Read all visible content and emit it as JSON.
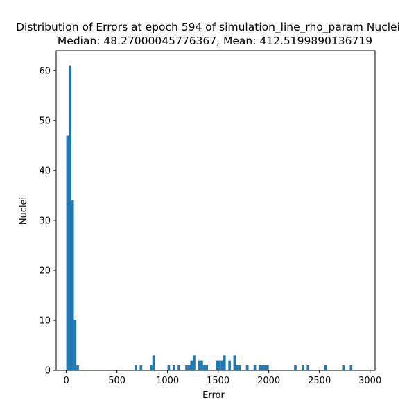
{
  "chart_data": {
    "type": "bar",
    "title": "Distribution of Errors at epoch 594 of simulation_line_rho_param Nuclei",
    "subtitle": "Median: 48.27000045776367, Mean: 412.5199890136719",
    "xlabel": "Error",
    "ylabel": "Nuclei",
    "xlim": [
      -100,
      3050
    ],
    "ylim": [
      0,
      64
    ],
    "x_ticks": [
      0,
      500,
      1000,
      1500,
      2000,
      2500,
      3000
    ],
    "y_ticks": [
      0,
      10,
      20,
      30,
      40,
      50,
      60
    ],
    "bin_width": 25,
    "bar_color": "#1f77b4",
    "grid": false,
    "bins": [
      {
        "x": 0,
        "count": 47
      },
      {
        "x": 25,
        "count": 61
      },
      {
        "x": 50,
        "count": 34
      },
      {
        "x": 75,
        "count": 10
      },
      {
        "x": 100,
        "count": 1
      },
      {
        "x": 675,
        "count": 1
      },
      {
        "x": 725,
        "count": 1
      },
      {
        "x": 825,
        "count": 1
      },
      {
        "x": 850,
        "count": 3
      },
      {
        "x": 1000,
        "count": 1
      },
      {
        "x": 1050,
        "count": 1
      },
      {
        "x": 1100,
        "count": 1
      },
      {
        "x": 1175,
        "count": 1
      },
      {
        "x": 1200,
        "count": 1
      },
      {
        "x": 1225,
        "count": 2
      },
      {
        "x": 1250,
        "count": 3
      },
      {
        "x": 1300,
        "count": 2
      },
      {
        "x": 1325,
        "count": 2
      },
      {
        "x": 1350,
        "count": 1
      },
      {
        "x": 1375,
        "count": 1
      },
      {
        "x": 1475,
        "count": 2
      },
      {
        "x": 1500,
        "count": 2
      },
      {
        "x": 1525,
        "count": 2
      },
      {
        "x": 1550,
        "count": 3
      },
      {
        "x": 1600,
        "count": 2
      },
      {
        "x": 1650,
        "count": 3
      },
      {
        "x": 1675,
        "count": 1
      },
      {
        "x": 1700,
        "count": 1
      },
      {
        "x": 1775,
        "count": 1
      },
      {
        "x": 1850,
        "count": 1
      },
      {
        "x": 1900,
        "count": 1
      },
      {
        "x": 1925,
        "count": 1
      },
      {
        "x": 1950,
        "count": 1
      },
      {
        "x": 1975,
        "count": 1
      },
      {
        "x": 2250,
        "count": 1
      },
      {
        "x": 2325,
        "count": 1
      },
      {
        "x": 2375,
        "count": 1
      },
      {
        "x": 2550,
        "count": 1
      },
      {
        "x": 2725,
        "count": 1
      },
      {
        "x": 2800,
        "count": 1
      }
    ]
  }
}
